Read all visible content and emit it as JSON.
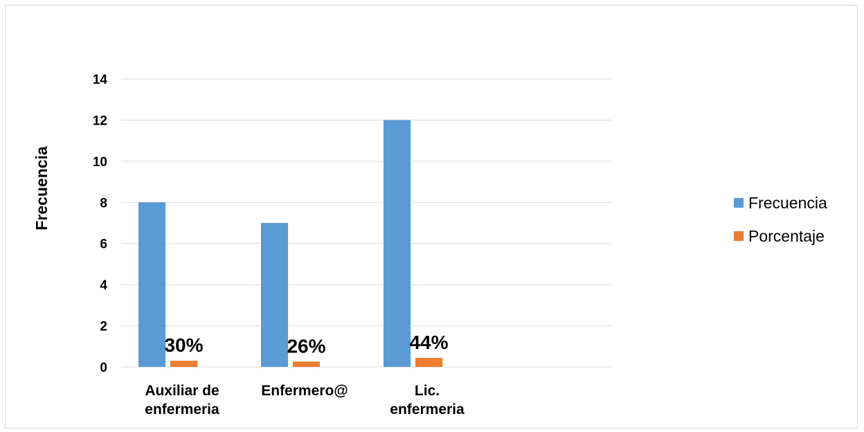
{
  "chart_data": {
    "type": "bar",
    "title": "",
    "xlabel": "",
    "ylabel": "Frecuencia",
    "ylim": [
      0,
      14
    ],
    "yticks": [
      0,
      2,
      4,
      6,
      8,
      10,
      12,
      14
    ],
    "grid": true,
    "legend_position": "right",
    "categories": [
      [
        "Auxiliar de",
        "enfermeria"
      ],
      [
        "Enfermero@"
      ],
      [
        "Lic.",
        "enfermeria"
      ]
    ],
    "series": [
      {
        "name": "Frecuencia",
        "color": "#5b9bd5",
        "values": [
          8,
          7,
          12
        ],
        "labels": [
          "",
          "",
          ""
        ]
      },
      {
        "name": "Porcentaje",
        "color": "#ed7d31",
        "values": [
          0.3,
          0.26,
          0.44
        ],
        "labels": [
          "30%",
          "26%",
          "44%"
        ]
      }
    ]
  }
}
